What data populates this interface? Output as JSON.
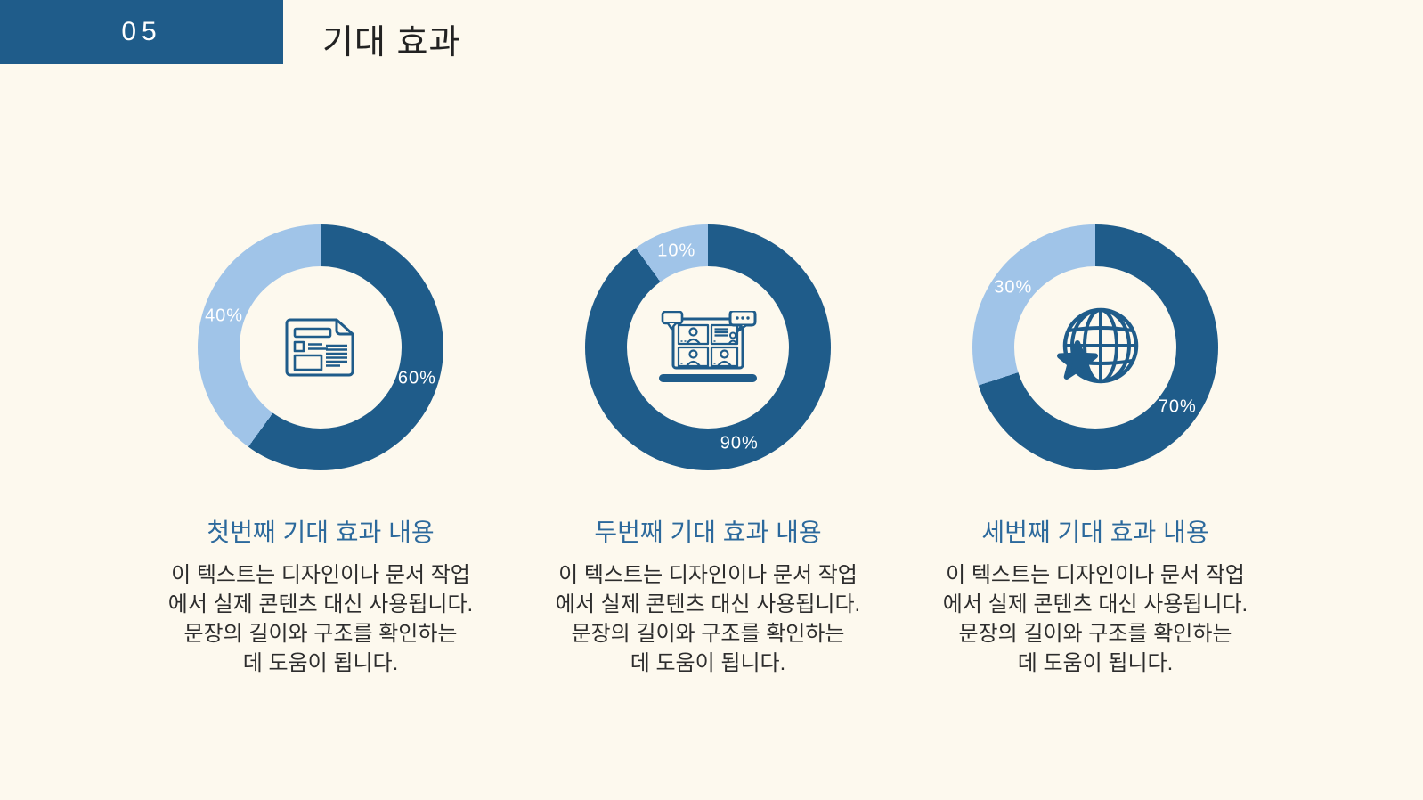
{
  "page": {
    "background_color": "#fdf9ee"
  },
  "header": {
    "section_number": "05",
    "title": "기대 효과",
    "badge_color": "#1f5c8a"
  },
  "colors": {
    "dark_blue": "#1f5c8a",
    "light_blue": "#a0c4e8",
    "heading_blue": "#2c699c",
    "body_text": "#2d2d2d",
    "background": "#fdf9ee"
  },
  "chart_data": [
    {
      "type": "pie",
      "subtype": "donut",
      "title": "첫번째 기대 효과 내용",
      "categories": [
        "main",
        "remainder"
      ],
      "values": [
        60,
        40
      ],
      "value_labels": [
        "60%",
        "40%"
      ],
      "colors": [
        "#1f5c8a",
        "#a0c4e8"
      ],
      "start_angle": "top",
      "direction": "clockwise",
      "center_icon": "document-icon",
      "label_color": "#ffffff"
    },
    {
      "type": "pie",
      "subtype": "donut",
      "title": "두번째 기대 효과 내용",
      "categories": [
        "main",
        "remainder"
      ],
      "values": [
        90,
        10
      ],
      "value_labels": [
        "90%",
        "10%"
      ],
      "colors": [
        "#1f5c8a",
        "#a0c4e8"
      ],
      "start_angle": "top",
      "direction": "clockwise",
      "center_icon": "video-conference-icon",
      "label_color": "#ffffff"
    },
    {
      "type": "pie",
      "subtype": "donut",
      "title": "세번째 기대 효과 내용",
      "categories": [
        "main",
        "remainder"
      ],
      "values": [
        70,
        30
      ],
      "value_labels": [
        "70%",
        "30%"
      ],
      "colors": [
        "#1f5c8a",
        "#a0c4e8"
      ],
      "start_angle": "top",
      "direction": "clockwise",
      "center_icon": "globe-star-icon",
      "label_color": "#ffffff"
    }
  ],
  "sections": [
    {
      "heading": "첫번째 기대 효과 내용",
      "body": "이 텍스트는 디자인이나 문서 작업\n에서 실제 콘텐츠 대신 사용됩니다.\n문장의 길이와 구조를 확인하는\n데 도움이 됩니다."
    },
    {
      "heading": "두번째 기대 효과 내용",
      "body": "이 텍스트는 디자인이나 문서 작업\n에서 실제 콘텐츠 대신 사용됩니다.\n문장의 길이와 구조를 확인하는\n데 도움이 됩니다."
    },
    {
      "heading": "세번째 기대 효과 내용",
      "body": "이 텍스트는 디자인이나 문서 작업\n에서 실제 콘텐츠 대신 사용됩니다.\n문장의 길이와 구조를 확인하는\n데 도움이 됩니다."
    }
  ]
}
